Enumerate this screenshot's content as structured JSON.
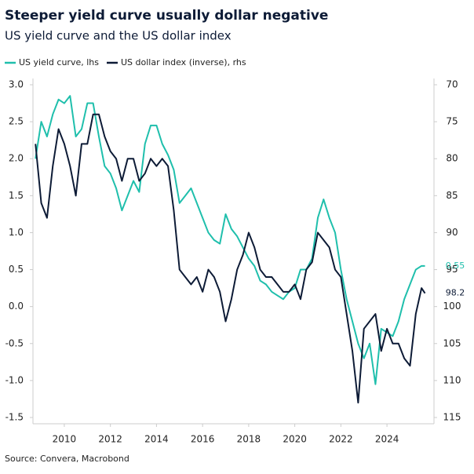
{
  "chart_data": {
    "type": "line",
    "title": "Steeper yield curve usually dollar negative",
    "subtitle": "US yield curve and the US dollar index",
    "source": "Source: Convera, Macrobond",
    "x": [
      2008.75,
      2009,
      2009.25,
      2009.5,
      2009.75,
      2010,
      2010.25,
      2010.5,
      2010.75,
      2011,
      2011.25,
      2011.5,
      2011.75,
      2012,
      2012.25,
      2012.5,
      2012.75,
      2013,
      2013.25,
      2013.5,
      2013.75,
      2014,
      2014.25,
      2014.5,
      2014.75,
      2015,
      2015.25,
      2015.5,
      2015.75,
      2016,
      2016.25,
      2016.5,
      2016.75,
      2017,
      2017.25,
      2017.5,
      2017.75,
      2018,
      2018.25,
      2018.5,
      2018.75,
      2019,
      2019.25,
      2019.5,
      2019.75,
      2020,
      2020.25,
      2020.5,
      2020.75,
      2021,
      2021.25,
      2021.5,
      2021.75,
      2022,
      2022.25,
      2022.5,
      2022.75,
      2023,
      2023.25,
      2023.5,
      2023.75,
      2024,
      2024.25,
      2024.5,
      2024.75,
      2025,
      2025.25,
      2025.5,
      2025.65
    ],
    "series": [
      {
        "name": "US yield curve, lhs",
        "color": "#1fbfac",
        "axis": "y",
        "last_value": 0.55,
        "values": [
          2.0,
          2.5,
          2.3,
          2.6,
          2.8,
          2.75,
          2.85,
          2.3,
          2.4,
          2.75,
          2.75,
          2.3,
          1.9,
          1.8,
          1.6,
          1.3,
          1.5,
          1.7,
          1.55,
          2.2,
          2.45,
          2.45,
          2.2,
          2.05,
          1.85,
          1.4,
          1.5,
          1.6,
          1.4,
          1.2,
          1.0,
          0.9,
          0.85,
          1.25,
          1.05,
          0.95,
          0.8,
          0.65,
          0.55,
          0.35,
          0.3,
          0.2,
          0.15,
          0.1,
          0.2,
          0.25,
          0.5,
          0.5,
          0.65,
          1.2,
          1.45,
          1.2,
          1.0,
          0.5,
          0.1,
          -0.2,
          -0.5,
          -0.7,
          -0.5,
          -1.05,
          -0.3,
          -0.35,
          -0.4,
          -0.2,
          0.1,
          0.3,
          0.5,
          0.55,
          0.55
        ]
      },
      {
        "name": "US dollar index (inverse), rhs",
        "color": "#0d1b36",
        "axis": "y2",
        "last_value": 98.2,
        "values": [
          78,
          86,
          88,
          81,
          76,
          78,
          81,
          85,
          78,
          78,
          74,
          74,
          77,
          79,
          80,
          83,
          80,
          80,
          83,
          82,
          80,
          81,
          80,
          81,
          87,
          95,
          96,
          97,
          96,
          98,
          95,
          96,
          98,
          102,
          99,
          95,
          93,
          90,
          92,
          95,
          96,
          96,
          97,
          98,
          98,
          97,
          99,
          95,
          94,
          90,
          91,
          92,
          95,
          96,
          101,
          106,
          113,
          103,
          102,
          101,
          106,
          103,
          105,
          105,
          107,
          108,
          101,
          97.5,
          98.2
        ]
      }
    ],
    "xlim": [
      2008.64,
      2026.04
    ],
    "xticks": [
      2010,
      2012,
      2014,
      2016,
      2018,
      2020,
      2022,
      2024
    ],
    "ylim": [
      -1.5,
      3.0
    ],
    "yticks": [
      {
        "value": 3.0,
        "label": "3.0"
      },
      2.5,
      {
        "value": 2.0,
        "label": "2.0"
      },
      1.5,
      {
        "value": 1.0,
        "label": "1.0"
      },
      0.5,
      {
        "value": 0.0,
        "label": "0.0"
      },
      -0.5,
      {
        "value": -1.0,
        "label": "-1.0"
      },
      -1.5
    ],
    "y2lim": [
      115,
      70
    ],
    "y2ticks": [
      70,
      75,
      80,
      85,
      90,
      95,
      100,
      105,
      110,
      115
    ]
  }
}
